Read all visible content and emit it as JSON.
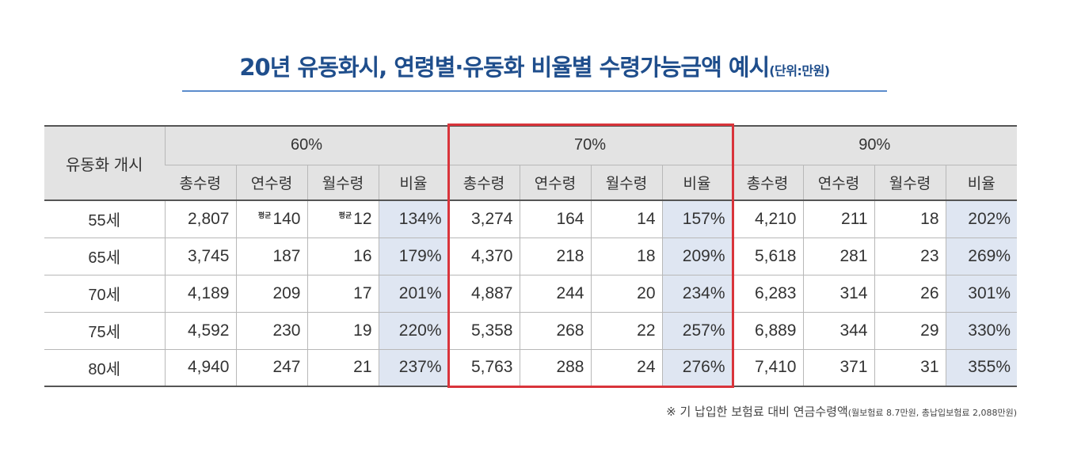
{
  "title": {
    "main": "20년 유동화시, 연령별·유동화 비율별 수령가능금액 예시",
    "unit": "(단위:만원)"
  },
  "table": {
    "start_header": "유동화 개시",
    "groups": [
      "60%",
      "70%",
      "90%"
    ],
    "sub_headers": [
      "총수령",
      "연수령",
      "월수령",
      "비율"
    ],
    "avg_prefix": "평균",
    "rows": [
      {
        "age": "55세",
        "cells": [
          "2,807",
          "140",
          "12",
          "134%",
          "3,274",
          "164",
          "14",
          "157%",
          "4,210",
          "211",
          "18",
          "202%"
        ]
      },
      {
        "age": "65세",
        "cells": [
          "3,745",
          "187",
          "16",
          "179%",
          "4,370",
          "218",
          "18",
          "209%",
          "5,618",
          "281",
          "23",
          "269%"
        ]
      },
      {
        "age": "70세",
        "cells": [
          "4,189",
          "209",
          "17",
          "201%",
          "4,887",
          "244",
          "20",
          "234%",
          "6,283",
          "314",
          "26",
          "301%"
        ]
      },
      {
        "age": "75세",
        "cells": [
          "4,592",
          "230",
          "19",
          "220%",
          "5,358",
          "268",
          "22",
          "257%",
          "6,889",
          "344",
          "29",
          "330%"
        ]
      },
      {
        "age": "80세",
        "cells": [
          "4,940",
          "247",
          "21",
          "237%",
          "5,763",
          "288",
          "24",
          "276%",
          "7,410",
          "371",
          "31",
          "355%"
        ]
      }
    ]
  },
  "footnote": {
    "main": "※ 기 납입한 보험료 대비 연금수령액",
    "detail": "(월보험료 8.7만원, 총납입보험료 2,088만원)"
  },
  "colors": {
    "title": "#1f4e8c",
    "highlight": "#d9343b",
    "ratio_bg": "#dfe6f2",
    "header_bg": "#e3e3e3"
  }
}
